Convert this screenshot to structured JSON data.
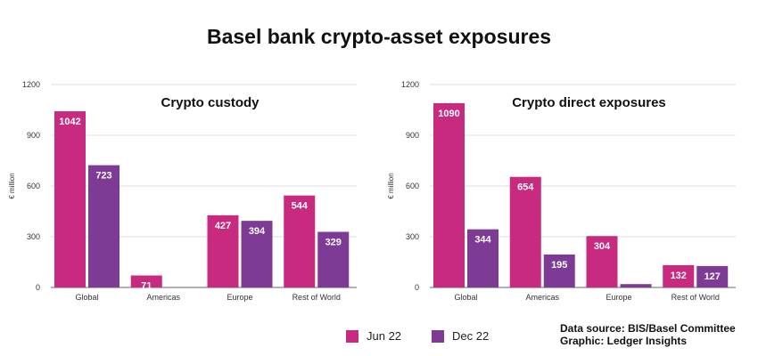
{
  "title": "Basel bank crypto-asset exposures",
  "colors": {
    "jun": "#C72A7F",
    "dec": "#7E3B96"
  },
  "legend": [
    {
      "label": "Jun 22",
      "color": "#C72A7F"
    },
    {
      "label": "Dec 22",
      "color": "#7E3B96"
    }
  ],
  "source": {
    "line1": "Data source: BIS/Basel Committee",
    "line2": "Graphic: Ledger Insights"
  },
  "chart_data": [
    {
      "type": "bar",
      "title": "Crypto custody",
      "ylabel": "€ million",
      "ylim": [
        0,
        1200
      ],
      "yticks": [
        0,
        300,
        600,
        900,
        1200
      ],
      "grid": true,
      "categories": [
        "Global",
        "Americas",
        "Europe",
        "Rest of World"
      ],
      "series": [
        {
          "name": "Jun 22",
          "values": [
            1042,
            71,
            427,
            544
          ],
          "labels": [
            "1042",
            "71",
            "427",
            "544"
          ]
        },
        {
          "name": "Dec 22",
          "values": [
            723,
            0,
            394,
            329
          ],
          "labels": [
            "723",
            "",
            "394",
            "329"
          ]
        }
      ]
    },
    {
      "type": "bar",
      "title": "Crypto direct exposures",
      "ylabel": "€ million",
      "ylim": [
        0,
        1200
      ],
      "yticks": [
        0,
        300,
        600,
        900,
        1200
      ],
      "grid": true,
      "categories": [
        "Global",
        "Americas",
        "Europe",
        "Rest of World"
      ],
      "series": [
        {
          "name": "Jun 22",
          "values": [
            1090,
            654,
            304,
            132
          ],
          "labels": [
            "1090",
            "654",
            "304",
            "132"
          ]
        },
        {
          "name": "Dec 22",
          "values": [
            344,
            195,
            20,
            127
          ],
          "labels": [
            "344",
            "195",
            "",
            "127"
          ]
        }
      ]
    }
  ]
}
